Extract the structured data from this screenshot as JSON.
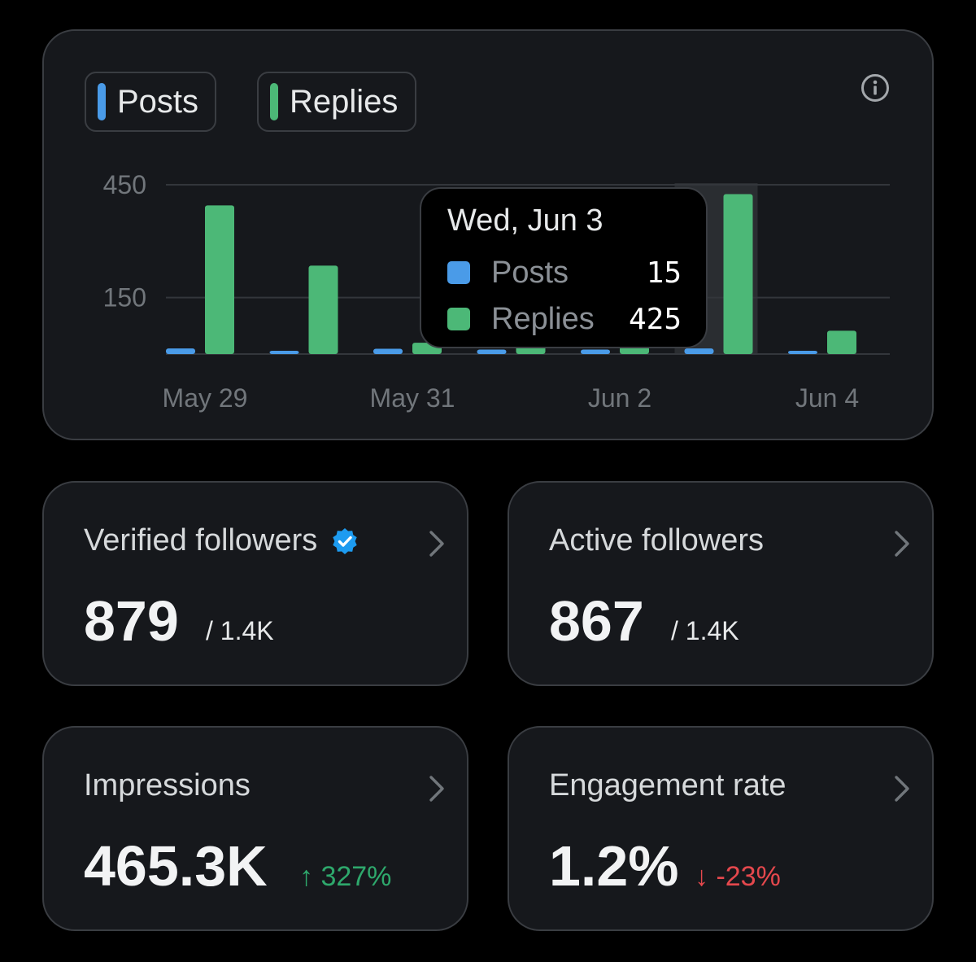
{
  "colors": {
    "posts": "#4a9be8",
    "replies": "#4cb877",
    "positive": "#2ea86c",
    "negative": "#e5484d",
    "verified": "#1d9bf0"
  },
  "legend": {
    "posts_label": "Posts",
    "replies_label": "Replies"
  },
  "icons": {
    "info": "info-icon",
    "verified": "verified-badge-icon",
    "chevron": "chevron-right-icon"
  },
  "chart_data": {
    "type": "bar",
    "categories": [
      "May 29",
      "May 30",
      "May 31",
      "Jun 1",
      "Jun 2",
      "Jun 3",
      "Jun 4"
    ],
    "x_tick_labels": [
      "May 29",
      "May 31",
      "Jun 2",
      "Jun 4"
    ],
    "series": [
      {
        "name": "Posts",
        "values": [
          15,
          4,
          14,
          12,
          12,
          15,
          2
        ]
      },
      {
        "name": "Replies",
        "values": [
          395,
          235,
          30,
          22,
          20,
          425,
          62
        ]
      }
    ],
    "y_ticks": [
      150,
      450
    ],
    "ylim": [
      0,
      450
    ],
    "grid": true,
    "highlighted_category": "Jun 3"
  },
  "tooltip": {
    "title": "Wed, Jun 3",
    "posts_label": "Posts",
    "posts_value": "15",
    "replies_label": "Replies",
    "replies_value": "425"
  },
  "cards": {
    "verified": {
      "title": "Verified followers",
      "value": "879",
      "sub": "/ 1.4K"
    },
    "active": {
      "title": "Active followers",
      "value": "867",
      "sub": "/ 1.4K"
    },
    "impressions": {
      "title": "Impressions",
      "value": "465.3K",
      "delta": "↑ 327%",
      "delta_direction": "up"
    },
    "engagement": {
      "title": "Engagement rate",
      "value": "1.2%",
      "delta": "↓ -23%",
      "delta_direction": "down"
    }
  }
}
